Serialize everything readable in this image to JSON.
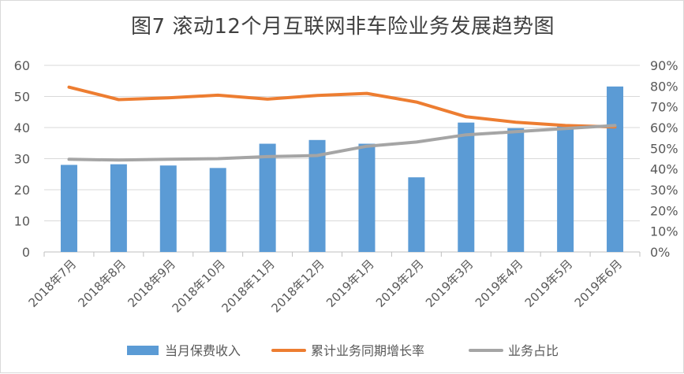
{
  "chart_data": {
    "type": "bar",
    "title": "图7 滚动12个月互联网非车险业务发展趋势图",
    "categories": [
      "2018年7月",
      "2018年8月",
      "2018年9月",
      "2018年10月",
      "2018年11月",
      "2018年12月",
      "2019年1月",
      "2019年2月",
      "2019年3月",
      "2019年4月",
      "2019年5月",
      "2019年6月"
    ],
    "y_left": {
      "ylim": [
        0,
        60
      ],
      "ticks": [
        "0",
        "10",
        "20",
        "30",
        "40",
        "50",
        "60"
      ]
    },
    "y_right": {
      "ylim": [
        0,
        0.9
      ],
      "ticks": [
        "0%",
        "10%",
        "20%",
        "30%",
        "40%",
        "50%",
        "60%",
        "70%",
        "80%",
        "90%"
      ]
    },
    "series": [
      {
        "name": "当月保费收入",
        "kind": "bar",
        "axis": "left",
        "color": "#5B9BD5",
        "values": [
          28,
          28.2,
          27.8,
          27,
          34.8,
          36,
          34.8,
          24,
          41.6,
          39.8,
          40.6,
          53.2
        ]
      },
      {
        "name": "累计业务同期增长率",
        "kind": "line",
        "axis": "right",
        "color": "#ED7D31",
        "values": [
          0.795,
          0.735,
          0.743,
          0.756,
          0.737,
          0.755,
          0.765,
          0.723,
          0.652,
          0.626,
          0.61,
          0.603
        ]
      },
      {
        "name": "业务占比",
        "kind": "line",
        "axis": "right",
        "color": "#A5A5A5",
        "values": [
          0.447,
          0.443,
          0.447,
          0.45,
          0.46,
          0.465,
          0.51,
          0.53,
          0.565,
          0.58,
          0.595,
          0.61
        ]
      }
    ],
    "grid": true,
    "legend_position": "bottom"
  }
}
